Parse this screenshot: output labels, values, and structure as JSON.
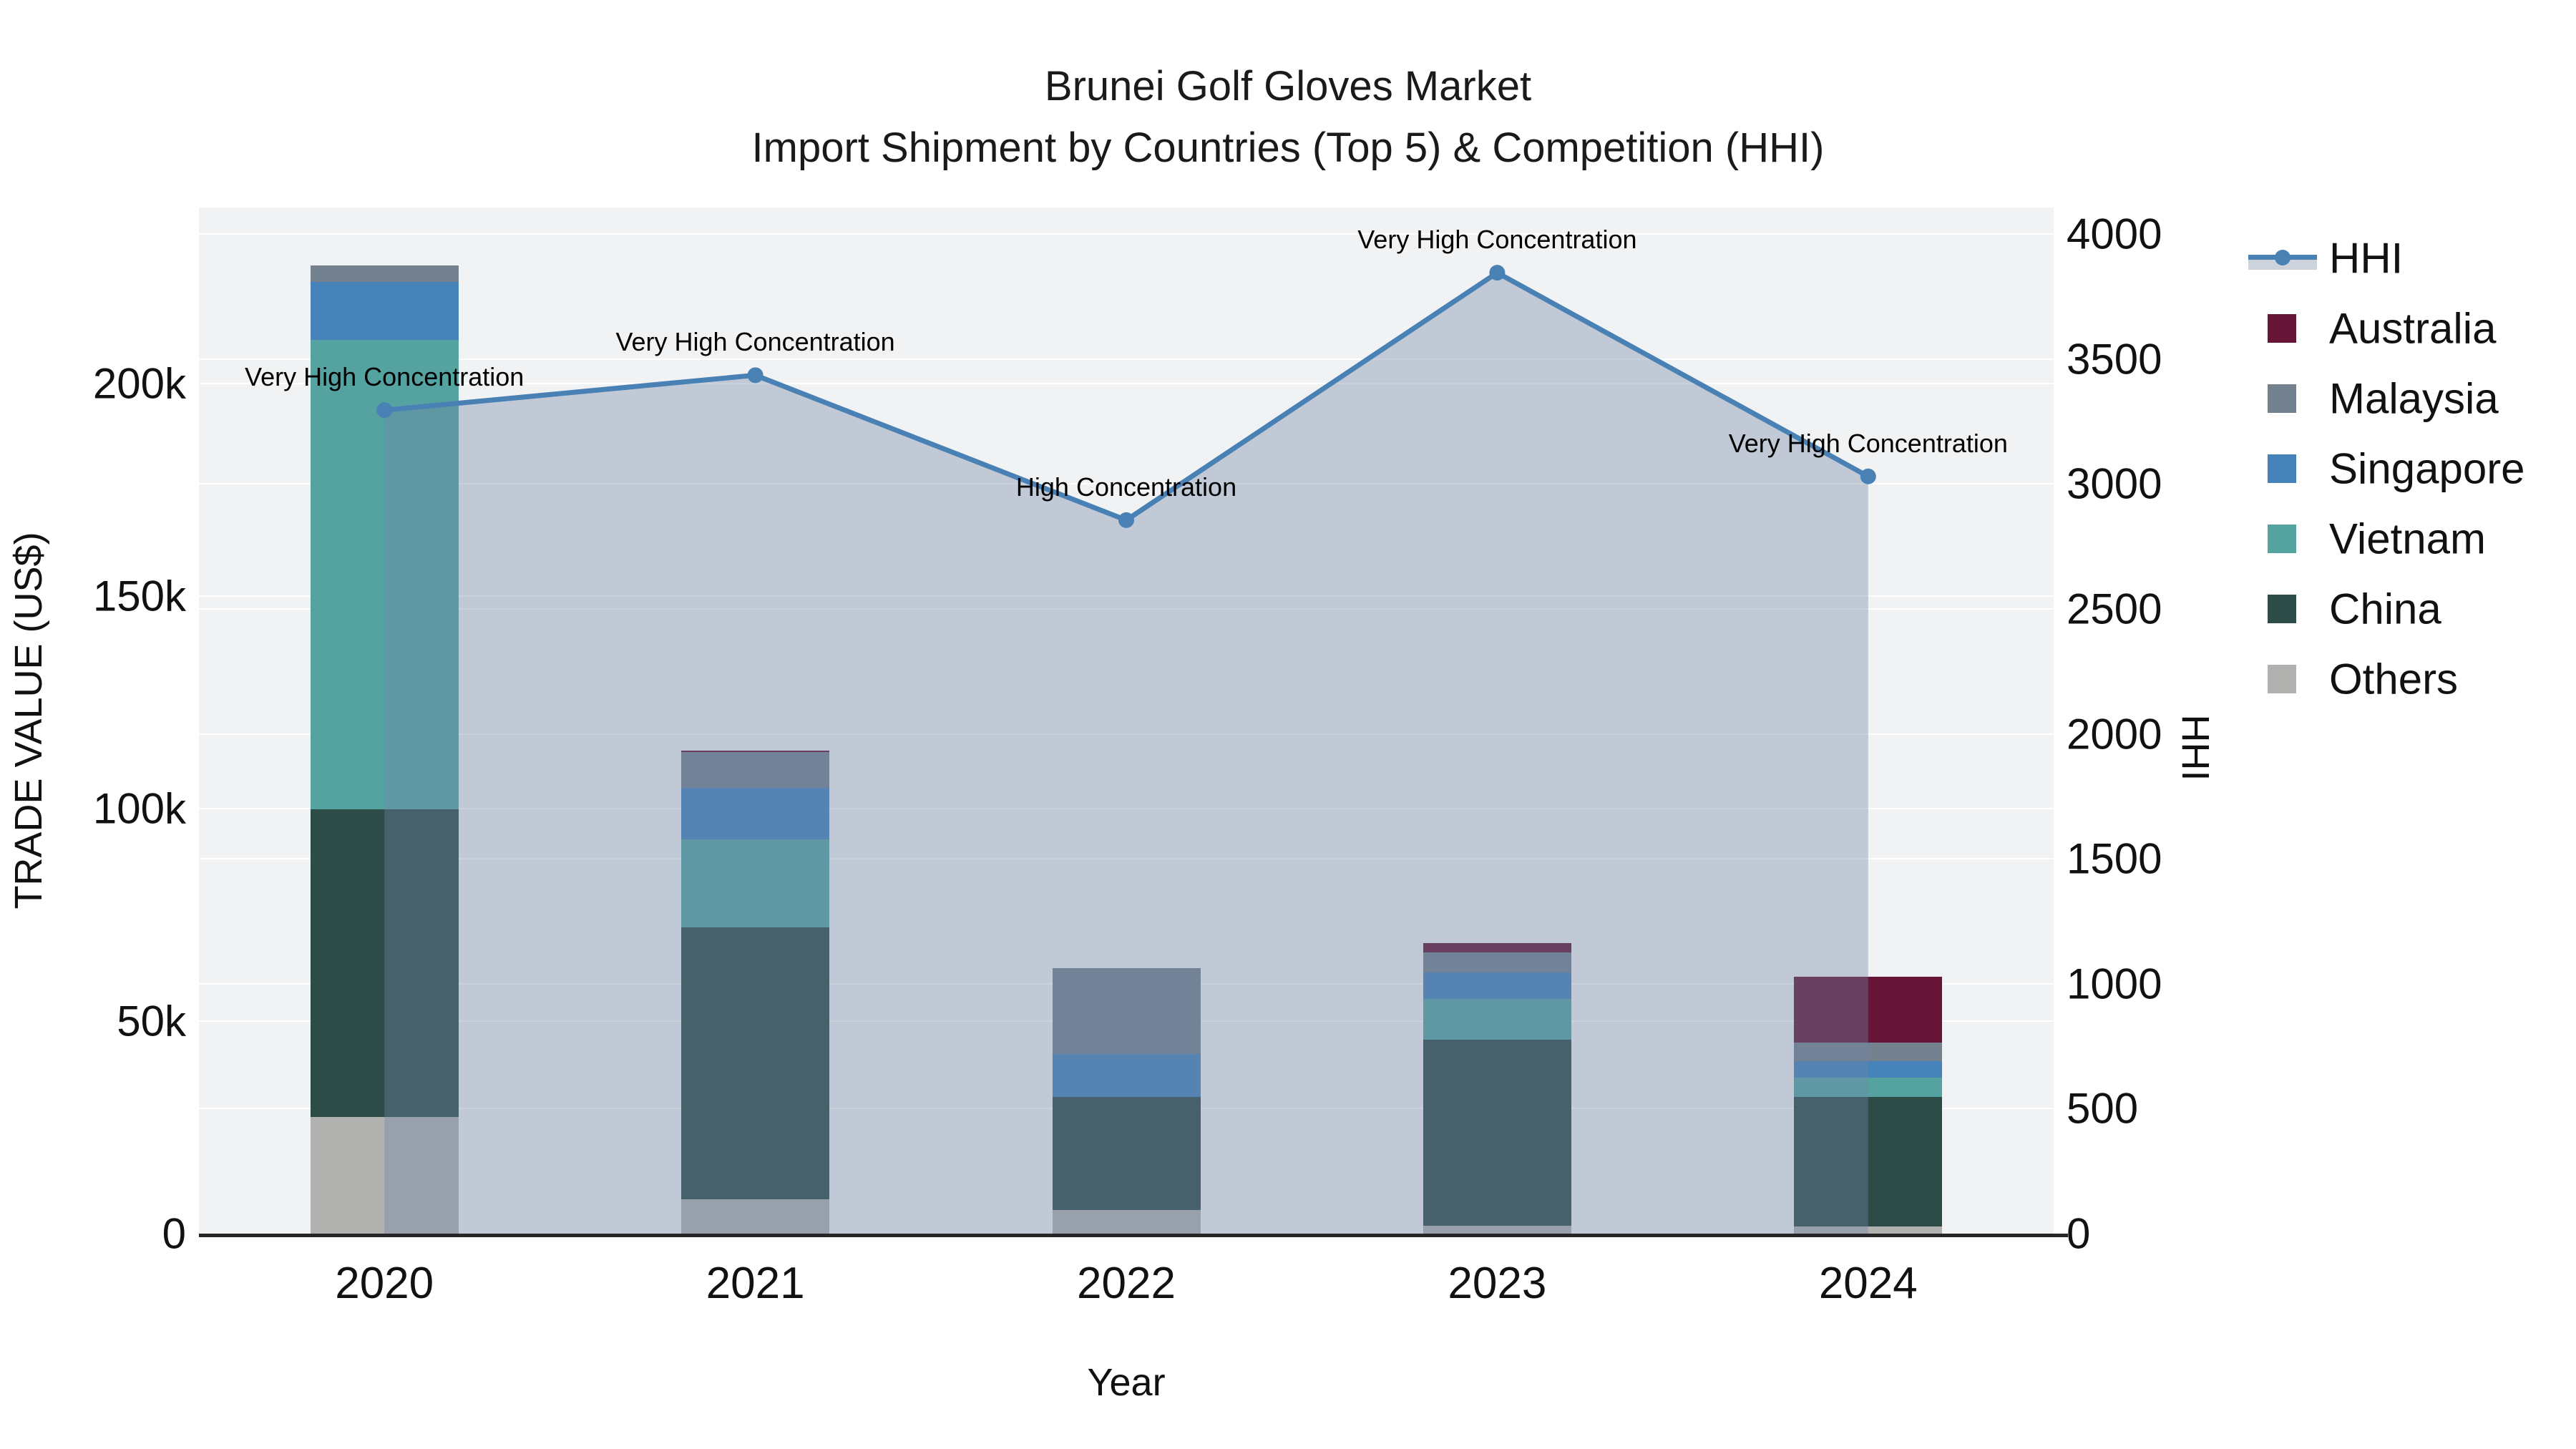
{
  "title": {
    "line1": "Brunei Golf Gloves Market",
    "line2": "Import Shipment by Countries (Top 5) & Competition (HHI)"
  },
  "axes": {
    "x": {
      "label": "Year"
    },
    "y_left": {
      "label": "TRADE VALUE (US$)",
      "ticks": [
        {
          "label": "0",
          "value": 0
        },
        {
          "label": "50k",
          "value": 50
        },
        {
          "label": "100k",
          "value": 100
        },
        {
          "label": "150k",
          "value": 150
        },
        {
          "label": "200k",
          "value": 200
        }
      ]
    },
    "y_right": {
      "label": "HHI",
      "ticks": [
        {
          "label": "0",
          "value": 0
        },
        {
          "label": "500",
          "value": 500
        },
        {
          "label": "1000",
          "value": 1000
        },
        {
          "label": "1500",
          "value": 1500
        },
        {
          "label": "2000",
          "value": 2000
        },
        {
          "label": "2500",
          "value": 2500
        },
        {
          "label": "3000",
          "value": 3000
        },
        {
          "label": "3500",
          "value": 3500
        },
        {
          "label": "4000",
          "value": 4000
        }
      ]
    }
  },
  "legend": [
    {
      "label": "HHI",
      "type": "line"
    },
    {
      "label": "Australia",
      "type": "swatch",
      "color": "#671536"
    },
    {
      "label": "Malaysia",
      "type": "swatch",
      "color": "#74818f"
    },
    {
      "label": "Singapore",
      "type": "swatch",
      "color": "#4583ba"
    },
    {
      "label": "Vietnam",
      "type": "swatch",
      "color": "#55a3a0"
    },
    {
      "label": "China",
      "type": "swatch",
      "color": "#2d4b47"
    },
    {
      "label": "Others",
      "type": "swatch",
      "color": "#b1b1af"
    }
  ],
  "colors": {
    "Australia": "#671536",
    "Malaysia": "#74818f",
    "Singapore": "#4583ba",
    "Vietnam": "#55a3a0",
    "China": "#2d4b47",
    "Others": "#b1b1af",
    "hhi_line": "#4a81b5",
    "hhi_area": "rgba(113,133,165,0.38)",
    "legend_area_patch": "#ccd3dd",
    "plot_bg": "#f1f2f3",
    "grid": "#ffffff",
    "axis_line": "#262626"
  },
  "chart_data": {
    "type": "bar+line",
    "title": "Brunei Golf Gloves Market — Import Shipment by Countries (Top 5) & Competition (HHI)",
    "xlabel": "Year",
    "ylabel_left": "TRADE VALUE (US$)",
    "ylabel_right": "HHI",
    "categories": [
      "2020",
      "2021",
      "2022",
      "2023",
      "2024"
    ],
    "bar_unit": "thousand US$",
    "stack_order_bottom_to_top": [
      "Others",
      "China",
      "Vietnam",
      "Singapore",
      "Malaysia",
      "Australia"
    ],
    "series": [
      {
        "name": "Others",
        "values": [
          27.5,
          8.0,
          5.6,
          1.9,
          1.6
        ]
      },
      {
        "name": "China",
        "values": [
          72.3,
          64.0,
          26.6,
          43.8,
          30.6
        ]
      },
      {
        "name": "Vietnam",
        "values": [
          110.4,
          20.7,
          0,
          9.5,
          4.5
        ]
      },
      {
        "name": "Singapore",
        "values": [
          13.7,
          12.1,
          10.1,
          6.2,
          3.9
        ]
      },
      {
        "name": "Malaysia",
        "values": [
          3.9,
          8.5,
          20.1,
          4.8,
          4.3
        ]
      },
      {
        "name": "Australia",
        "values": [
          0,
          0.3,
          0,
          2.2,
          15.6
        ]
      }
    ],
    "bar_totals_usd_k": [
      227.8,
      113.6,
      62.4,
      68.4,
      60.5
    ],
    "hhi": {
      "name": "HHI",
      "values": [
        3295,
        3435,
        2855,
        3845,
        3030
      ],
      "annotations": [
        "Very High Concentration",
        "Very High Concentration",
        "High Concentration",
        "Very High Concentration",
        "Very High Concentration"
      ]
    },
    "ylim_left_usd_k": [
      0,
      241.5
    ],
    "ylim_right": [
      0,
      4000
    ],
    "grid": true,
    "legend_position": "upper right, outside plot"
  }
}
